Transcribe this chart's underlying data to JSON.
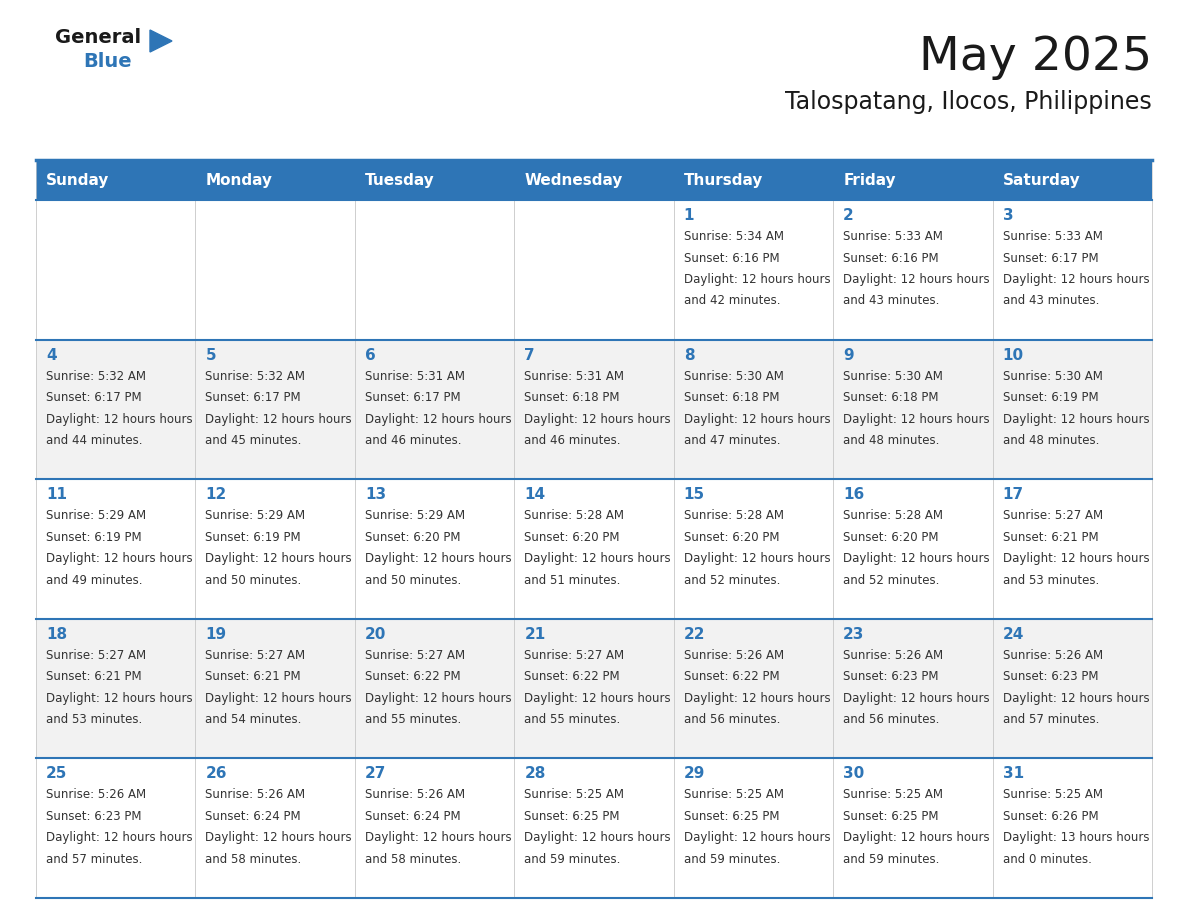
{
  "title": "May 2025",
  "subtitle": "Talospatang, Ilocos, Philippines",
  "header_bg": "#2E75B6",
  "header_text": "#FFFFFF",
  "row_bg": [
    "#FFFFFF",
    "#F2F2F2"
  ],
  "day_number_color": "#2E75B6",
  "cell_text_color": "#333333",
  "border_color": "#2E75B6",
  "separator_color": "#2E75B6",
  "days_of_week": [
    "Sunday",
    "Monday",
    "Tuesday",
    "Wednesday",
    "Thursday",
    "Friday",
    "Saturday"
  ],
  "calendar_data": [
    [
      {
        "day": "",
        "sunrise": "",
        "sunset": "",
        "daylight": ""
      },
      {
        "day": "",
        "sunrise": "",
        "sunset": "",
        "daylight": ""
      },
      {
        "day": "",
        "sunrise": "",
        "sunset": "",
        "daylight": ""
      },
      {
        "day": "",
        "sunrise": "",
        "sunset": "",
        "daylight": ""
      },
      {
        "day": "1",
        "sunrise": "5:34 AM",
        "sunset": "6:16 PM",
        "daylight": "12 hours and 42 minutes."
      },
      {
        "day": "2",
        "sunrise": "5:33 AM",
        "sunset": "6:16 PM",
        "daylight": "12 hours and 43 minutes."
      },
      {
        "day": "3",
        "sunrise": "5:33 AM",
        "sunset": "6:17 PM",
        "daylight": "12 hours and 43 minutes."
      }
    ],
    [
      {
        "day": "4",
        "sunrise": "5:32 AM",
        "sunset": "6:17 PM",
        "daylight": "12 hours and 44 minutes."
      },
      {
        "day": "5",
        "sunrise": "5:32 AM",
        "sunset": "6:17 PM",
        "daylight": "12 hours and 45 minutes."
      },
      {
        "day": "6",
        "sunrise": "5:31 AM",
        "sunset": "6:17 PM",
        "daylight": "12 hours and 46 minutes."
      },
      {
        "day": "7",
        "sunrise": "5:31 AM",
        "sunset": "6:18 PM",
        "daylight": "12 hours and 46 minutes."
      },
      {
        "day": "8",
        "sunrise": "5:30 AM",
        "sunset": "6:18 PM",
        "daylight": "12 hours and 47 minutes."
      },
      {
        "day": "9",
        "sunrise": "5:30 AM",
        "sunset": "6:18 PM",
        "daylight": "12 hours and 48 minutes."
      },
      {
        "day": "10",
        "sunrise": "5:30 AM",
        "sunset": "6:19 PM",
        "daylight": "12 hours and 48 minutes."
      }
    ],
    [
      {
        "day": "11",
        "sunrise": "5:29 AM",
        "sunset": "6:19 PM",
        "daylight": "12 hours and 49 minutes."
      },
      {
        "day": "12",
        "sunrise": "5:29 AM",
        "sunset": "6:19 PM",
        "daylight": "12 hours and 50 minutes."
      },
      {
        "day": "13",
        "sunrise": "5:29 AM",
        "sunset": "6:20 PM",
        "daylight": "12 hours and 50 minutes."
      },
      {
        "day": "14",
        "sunrise": "5:28 AM",
        "sunset": "6:20 PM",
        "daylight": "12 hours and 51 minutes."
      },
      {
        "day": "15",
        "sunrise": "5:28 AM",
        "sunset": "6:20 PM",
        "daylight": "12 hours and 52 minutes."
      },
      {
        "day": "16",
        "sunrise": "5:28 AM",
        "sunset": "6:20 PM",
        "daylight": "12 hours and 52 minutes."
      },
      {
        "day": "17",
        "sunrise": "5:27 AM",
        "sunset": "6:21 PM",
        "daylight": "12 hours and 53 minutes."
      }
    ],
    [
      {
        "day": "18",
        "sunrise": "5:27 AM",
        "sunset": "6:21 PM",
        "daylight": "12 hours and 53 minutes."
      },
      {
        "day": "19",
        "sunrise": "5:27 AM",
        "sunset": "6:21 PM",
        "daylight": "12 hours and 54 minutes."
      },
      {
        "day": "20",
        "sunrise": "5:27 AM",
        "sunset": "6:22 PM",
        "daylight": "12 hours and 55 minutes."
      },
      {
        "day": "21",
        "sunrise": "5:27 AM",
        "sunset": "6:22 PM",
        "daylight": "12 hours and 55 minutes."
      },
      {
        "day": "22",
        "sunrise": "5:26 AM",
        "sunset": "6:22 PM",
        "daylight": "12 hours and 56 minutes."
      },
      {
        "day": "23",
        "sunrise": "5:26 AM",
        "sunset": "6:23 PM",
        "daylight": "12 hours and 56 minutes."
      },
      {
        "day": "24",
        "sunrise": "5:26 AM",
        "sunset": "6:23 PM",
        "daylight": "12 hours and 57 minutes."
      }
    ],
    [
      {
        "day": "25",
        "sunrise": "5:26 AM",
        "sunset": "6:23 PM",
        "daylight": "12 hours and 57 minutes."
      },
      {
        "day": "26",
        "sunrise": "5:26 AM",
        "sunset": "6:24 PM",
        "daylight": "12 hours and 58 minutes."
      },
      {
        "day": "27",
        "sunrise": "5:26 AM",
        "sunset": "6:24 PM",
        "daylight": "12 hours and 58 minutes."
      },
      {
        "day": "28",
        "sunrise": "5:25 AM",
        "sunset": "6:25 PM",
        "daylight": "12 hours and 59 minutes."
      },
      {
        "day": "29",
        "sunrise": "5:25 AM",
        "sunset": "6:25 PM",
        "daylight": "12 hours and 59 minutes."
      },
      {
        "day": "30",
        "sunrise": "5:25 AM",
        "sunset": "6:25 PM",
        "daylight": "12 hours and 59 minutes."
      },
      {
        "day": "31",
        "sunrise": "5:25 AM",
        "sunset": "6:26 PM",
        "daylight": "13 hours and 0 minutes."
      }
    ]
  ],
  "logo_general_color": "#1a1a1a",
  "logo_blue_color": "#2E75B6",
  "title_color": "#1a1a1a",
  "subtitle_color": "#1a1a1a"
}
